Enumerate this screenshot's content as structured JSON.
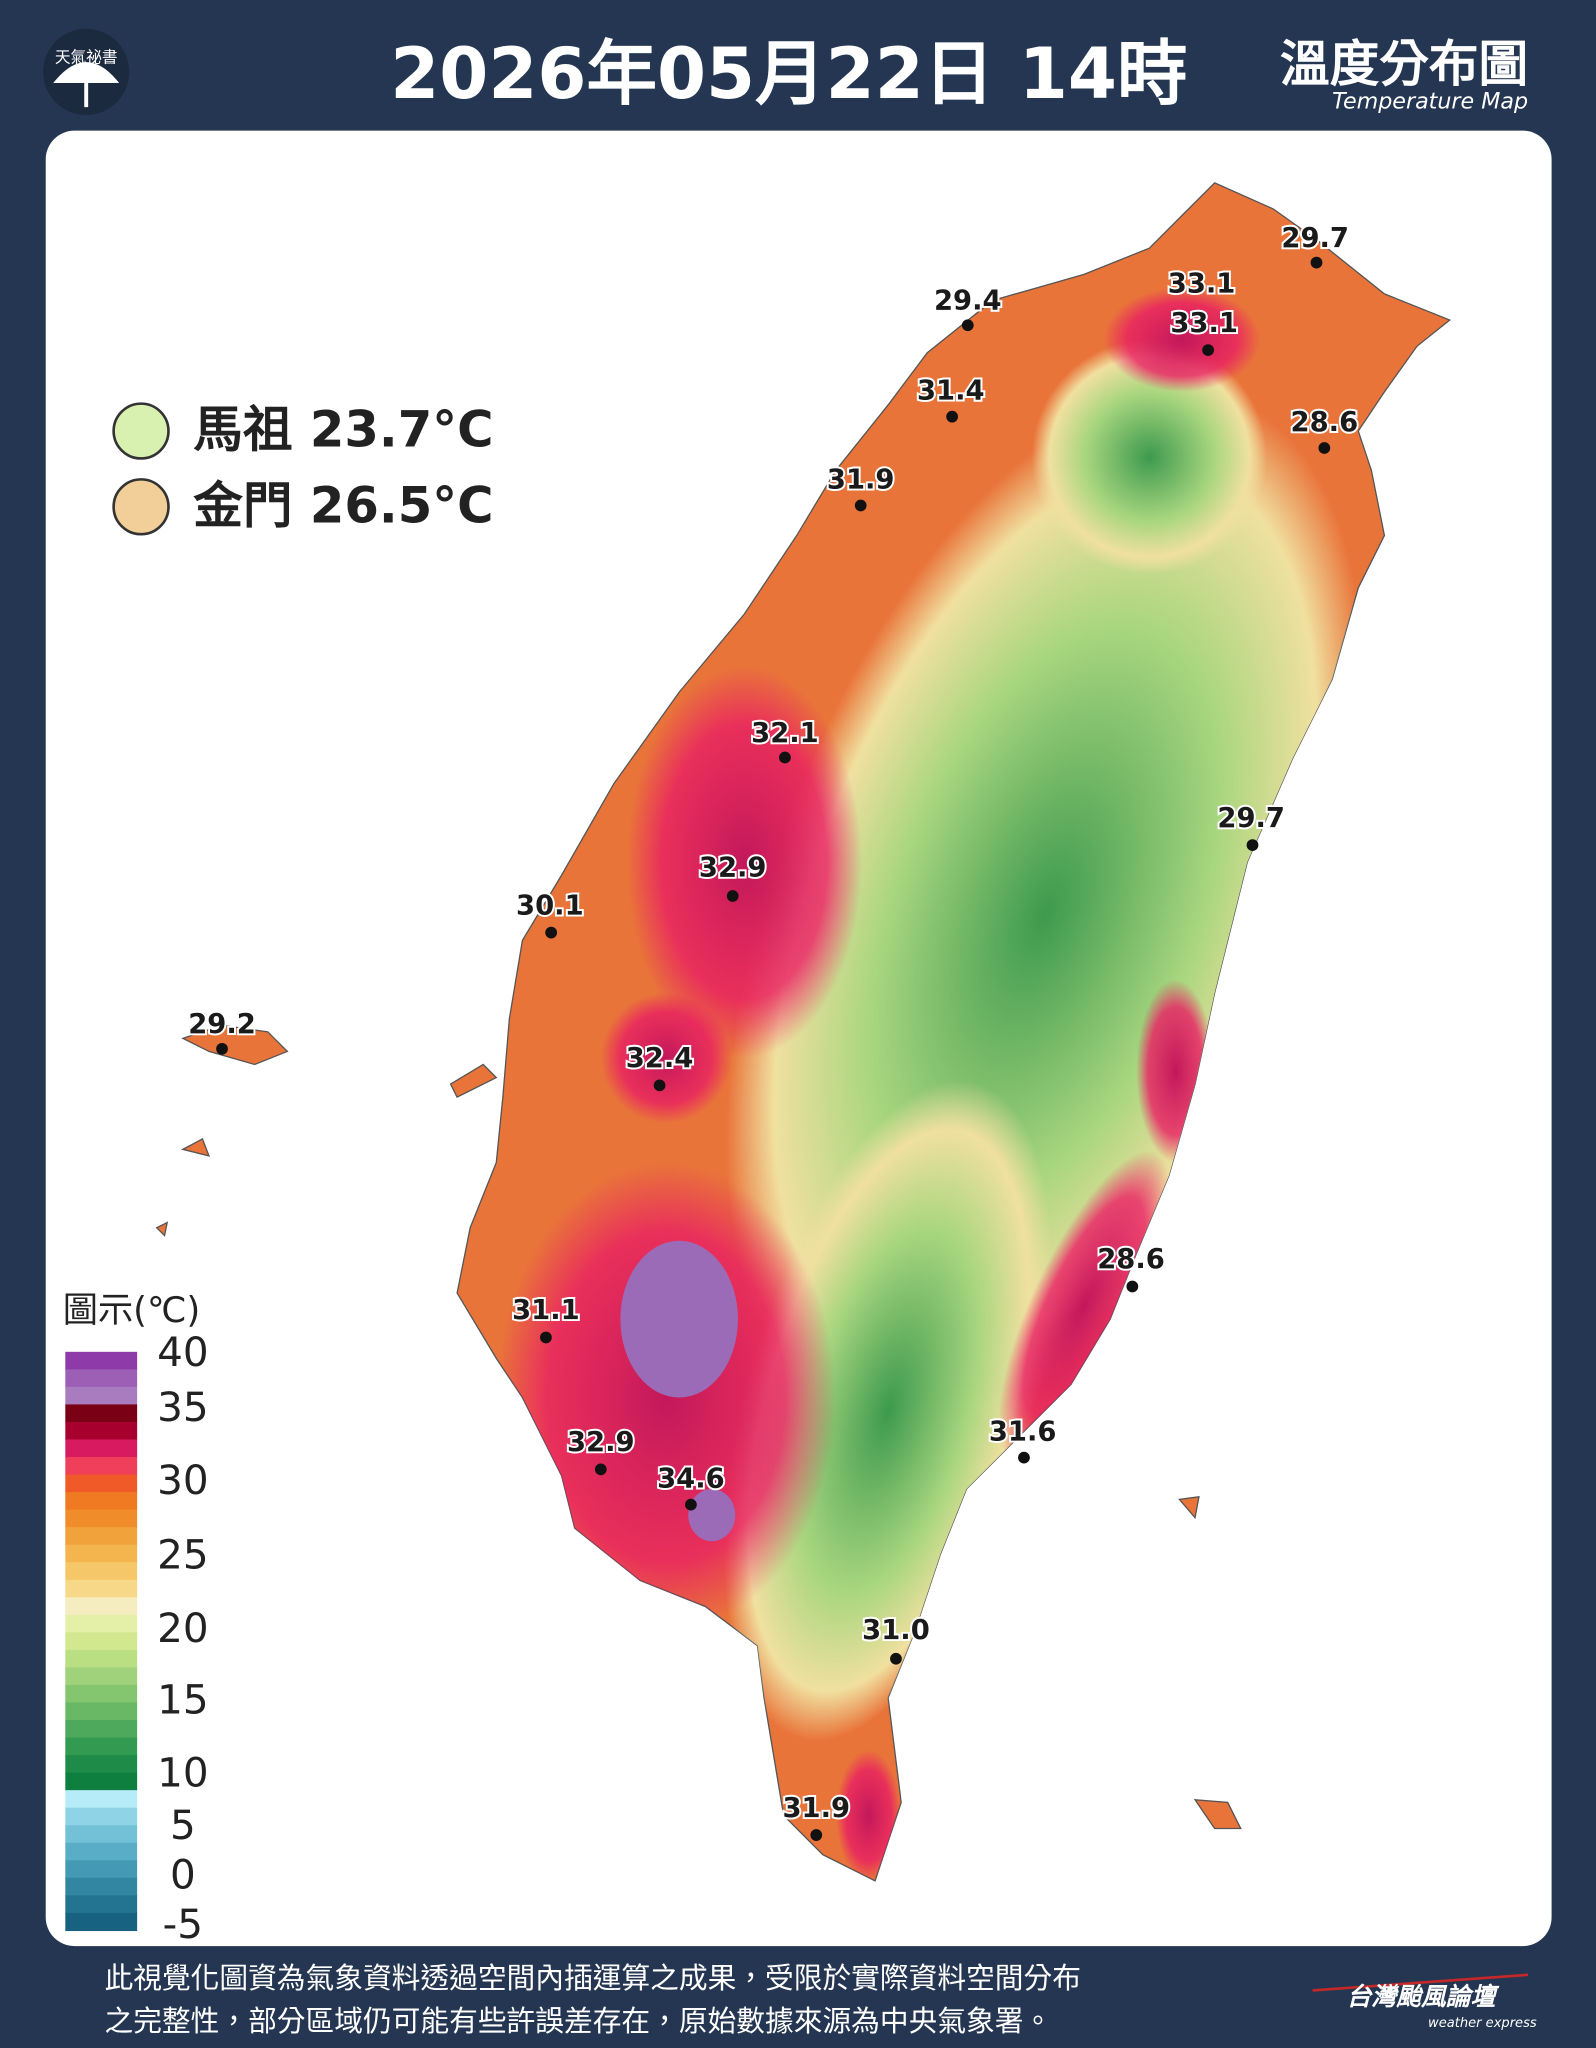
{
  "header": {
    "logo": "天氣祕書",
    "title": "2026年05月22日 14時",
    "map_title": "溫度分布圖",
    "map_subtitle": "Temperature Map"
  },
  "islands": [
    {
      "name": "馬祖",
      "temp": "23.7°C"
    },
    {
      "name": "金門",
      "temp": "26.5°C"
    }
  ],
  "stations": [
    "29.7",
    "29.4",
    "33.1",
    "33.1",
    "31.4",
    "28.6",
    "31.9",
    "32.1",
    "29.7",
    "32.9",
    "30.1",
    "29.2",
    "32.4",
    "28.6",
    "31.1",
    "31.6",
    "32.9",
    "34.6",
    "31.0",
    "31.9"
  ],
  "legend": {
    "title": "圖示(℃)",
    "ticks": [
      40,
      35,
      30,
      25,
      20,
      15,
      10,
      5,
      0,
      -5
    ]
  },
  "footer": {
    "lines": [
      "此視覺化圖資為氣象資料透過空間內插運算之成果，受限於實際資料空間分布",
      "之完整性，部分區域仍可能有些許誤差存在，原始數據來源為中央氣象署。"
    ],
    "brand": "台灣颱風論壇",
    "brand_sub": "weather express"
  }
}
